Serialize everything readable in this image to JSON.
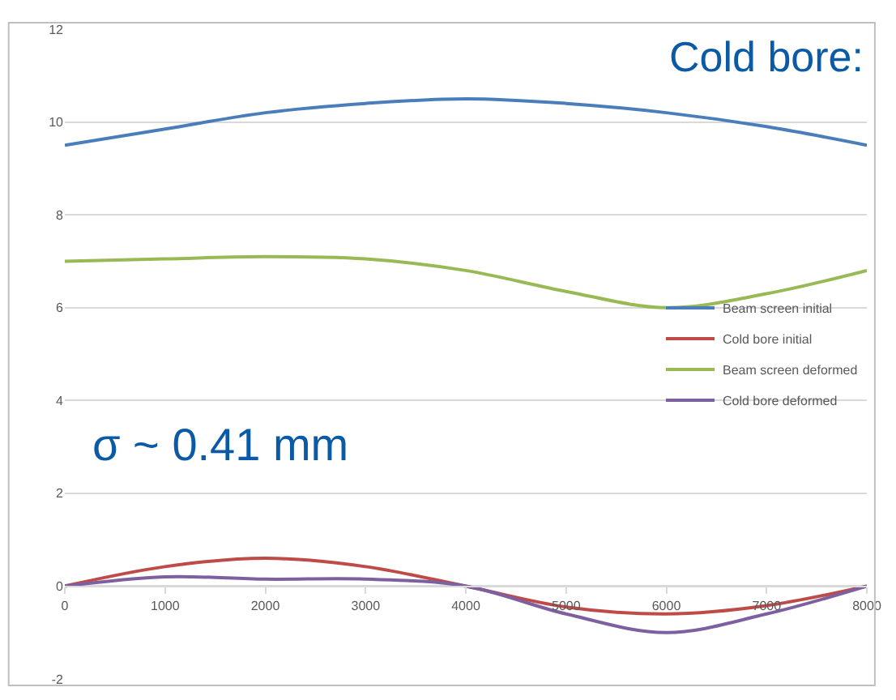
{
  "chart_data": {
    "type": "line",
    "x": [
      0,
      1000,
      2000,
      3000,
      4000,
      5000,
      6000,
      7000,
      8000
    ],
    "series": [
      {
        "name": "Beam screen initial",
        "color": "#4a7ebb",
        "values": [
          9.5,
          9.85,
          10.2,
          10.4,
          10.5,
          10.4,
          10.2,
          9.9,
          9.5
        ]
      },
      {
        "name": "Cold bore initial",
        "color": "#be4b48",
        "values": [
          0,
          0.42,
          0.6,
          0.42,
          0,
          -0.45,
          -0.6,
          -0.42,
          0
        ]
      },
      {
        "name": "Beam screen deformed",
        "color": "#98b954",
        "values": [
          7.0,
          7.05,
          7.1,
          7.05,
          6.8,
          6.35,
          6.0,
          6.3,
          6.8
        ]
      },
      {
        "name": "Cold bore deformed",
        "color": "#7d60a0",
        "values": [
          0,
          0.2,
          0.15,
          0.15,
          0,
          -0.6,
          -1.0,
          -0.6,
          0
        ]
      }
    ],
    "xlim": [
      0,
      8000
    ],
    "xticks": [
      0,
      1000,
      2000,
      3000,
      4000,
      5000,
      6000,
      7000,
      8000
    ],
    "ylim": [
      -2,
      12
    ],
    "yticks": [
      -2,
      0,
      2,
      4,
      6,
      8,
      10,
      12
    ],
    "grid": "y",
    "legend": "right",
    "marker": "none",
    "line_style": "solid",
    "annotations": [
      "Cold bore:",
      "σ ~ 0.41 mm"
    ]
  }
}
